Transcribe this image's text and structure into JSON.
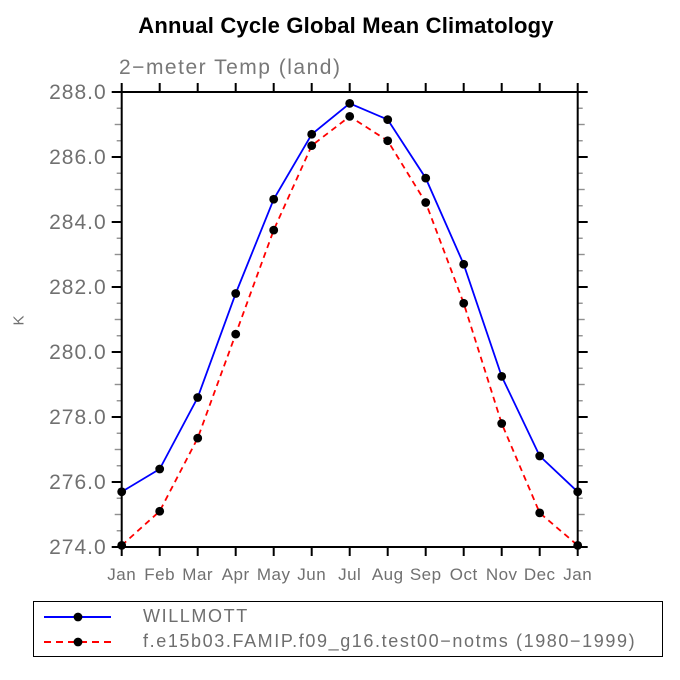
{
  "header": {
    "title": "Annual Cycle Global Mean Climatology"
  },
  "chart_data": {
    "type": "line",
    "title": "Annual Cycle Global Mean Climatology",
    "subtitle": "2−meter Temp (land)",
    "ylabel": "K",
    "xlabel": "",
    "categories": [
      "Jan",
      "Feb",
      "Mar",
      "Apr",
      "May",
      "Jun",
      "Jul",
      "Aug",
      "Sep",
      "Oct",
      "Nov",
      "Dec",
      "Jan"
    ],
    "ylim": [
      274.0,
      288.0
    ],
    "ytick_major_step": 2.0,
    "ytick_minor_step": 0.5,
    "ytick_labels": [
      "274.0",
      "276.0",
      "278.0",
      "280.0",
      "282.0",
      "284.0",
      "286.0",
      "288.0"
    ],
    "grid": false,
    "legend_position": "bottom",
    "marker": {
      "shape": "circle",
      "color": "#000000",
      "radius": 4.4
    },
    "axis_color": "#000000",
    "label_color": "#707070",
    "series": [
      {
        "name": "WILLMOTT",
        "color": "#0000ff",
        "line_style": "solid",
        "values": [
          275.7,
          276.4,
          278.6,
          281.8,
          284.7,
          286.7,
          287.65,
          287.15,
          285.35,
          282.7,
          279.25,
          276.8,
          275.7
        ]
      },
      {
        "name": "f.e15b03.FAMIP.f09_g16.test00−notms (1980−1999)",
        "color": "#ff0000",
        "line_style": "dashed",
        "values": [
          274.05,
          275.1,
          277.35,
          280.55,
          283.75,
          286.35,
          287.25,
          286.5,
          284.6,
          281.5,
          277.8,
          275.05,
          274.05
        ]
      }
    ]
  }
}
